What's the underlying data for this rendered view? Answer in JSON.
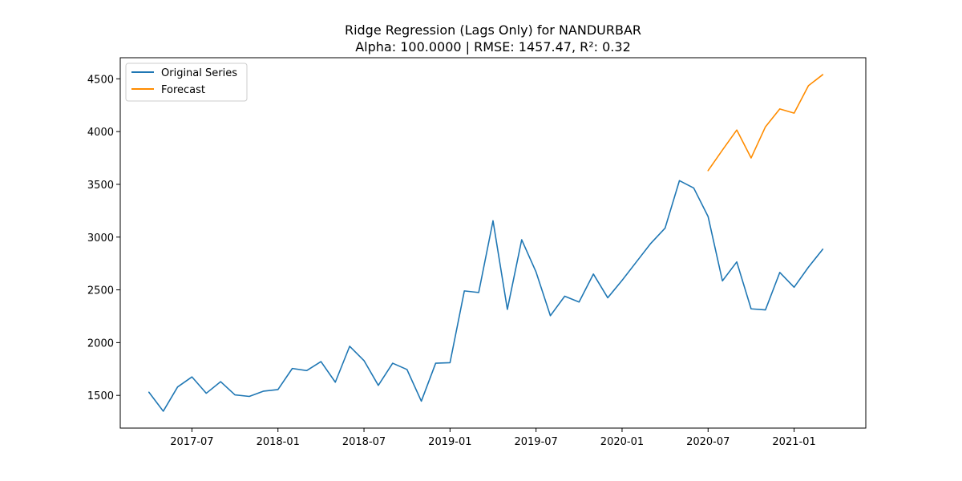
{
  "chart_data": {
    "type": "line",
    "title": "Ridge Regression (Lags Only) for NANDURBAR",
    "subtitle": "Alpha: 100.0000 | RMSE: 1457.47, R²: 0.32",
    "xlabel": "",
    "ylabel": "",
    "grid": false,
    "legend_position": "top-left",
    "x_ticks": [
      "2017-07",
      "2018-01",
      "2018-07",
      "2019-01",
      "2019-07",
      "2020-01",
      "2020-07",
      "2021-01"
    ],
    "y_ticks": [
      1500,
      2000,
      2500,
      3000,
      3500,
      4000,
      4500
    ],
    "xlim": [
      "2017-02",
      "2021-06"
    ],
    "ylim": [
      1190,
      4700
    ],
    "series": [
      {
        "name": "Original Series",
        "color": "#1f77b4",
        "x": [
          "2017-04",
          "2017-05",
          "2017-06",
          "2017-07",
          "2017-08",
          "2017-09",
          "2017-10",
          "2017-11",
          "2017-12",
          "2018-01",
          "2018-02",
          "2018-03",
          "2018-04",
          "2018-05",
          "2018-06",
          "2018-07",
          "2018-08",
          "2018-09",
          "2018-10",
          "2018-11",
          "2018-12",
          "2019-01",
          "2019-02",
          "2019-03",
          "2019-04",
          "2019-05",
          "2019-06",
          "2019-07",
          "2019-08",
          "2019-09",
          "2019-10",
          "2019-11",
          "2019-12",
          "2020-01",
          "2020-02",
          "2020-03",
          "2020-04",
          "2020-05",
          "2020-06",
          "2020-07",
          "2020-08",
          "2020-09",
          "2020-10",
          "2020-11",
          "2020-12",
          "2021-01",
          "2021-02",
          "2021-03"
        ],
        "values": [
          1530,
          1350,
          1580,
          1675,
          1520,
          1630,
          1505,
          1490,
          1540,
          1555,
          1755,
          1735,
          1820,
          1625,
          1965,
          1830,
          1595,
          1805,
          1745,
          1445,
          1805,
          1810,
          2490,
          2475,
          3155,
          2315,
          2975,
          2670,
          2255,
          2440,
          2385,
          2650,
          2425,
          2590,
          2765,
          2940,
          3085,
          3535,
          3465,
          3195,
          2585,
          2765,
          2320,
          2310,
          2665,
          2525,
          2715,
          2885
        ]
      },
      {
        "name": "Forecast",
        "color": "#ff8c00",
        "x": [
          "2020-07",
          "2020-08",
          "2020-09",
          "2020-10",
          "2020-11",
          "2020-12",
          "2021-01",
          "2021-02",
          "2021-03"
        ],
        "values": [
          3630,
          3825,
          4015,
          3750,
          4045,
          4215,
          4175,
          4435,
          4540
        ]
      }
    ]
  }
}
